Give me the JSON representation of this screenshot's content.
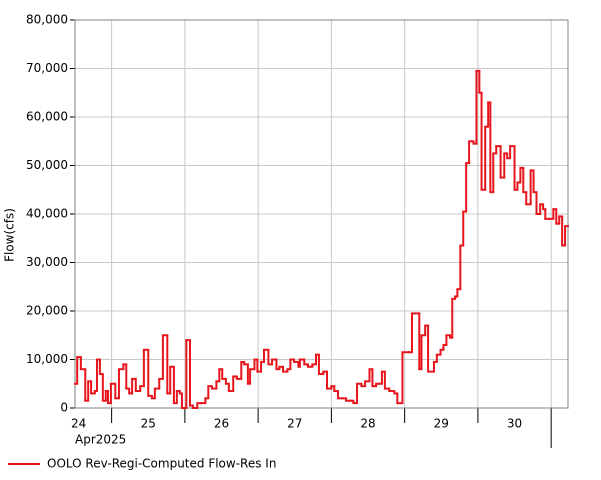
{
  "chart_data": {
    "type": "step",
    "ylabel": "Flow(cfs)",
    "x_sublabel": "Apr2025",
    "xlim": [
      24.5,
      31.23
    ],
    "xticks": [
      25,
      26,
      27,
      28,
      29,
      30,
      31
    ],
    "day_labels": [
      {
        "value": 24.5,
        "label": "24"
      },
      {
        "value": 25.5,
        "label": "25"
      },
      {
        "value": 26.5,
        "label": "26"
      },
      {
        "value": 27.5,
        "label": "27"
      },
      {
        "value": 28.5,
        "label": "28"
      },
      {
        "value": 29.5,
        "label": "29"
      },
      {
        "value": 30.5,
        "label": "30"
      }
    ],
    "ylim": [
      0,
      80000
    ],
    "yticks": [
      0,
      {
        "value": 10000,
        "label": "10,000"
      },
      {
        "value": 20000,
        "label": "20,000"
      },
      {
        "value": 30000,
        "label": "30,000"
      },
      {
        "value": 40000,
        "label": "40,000"
      },
      {
        "value": 50000,
        "label": "50,000"
      },
      {
        "value": 60000,
        "label": "60,000"
      },
      {
        "value": 70000,
        "label": "70,000"
      },
      {
        "value": 80000,
        "label": "80,000"
      }
    ],
    "grid": true,
    "legend": "bottom-left",
    "x": [
      24.5,
      24.53,
      24.58,
      24.64,
      24.68,
      24.72,
      24.77,
      24.8,
      24.84,
      24.88,
      24.92,
      24.95,
      24.99,
      25.05,
      25.1,
      25.16,
      25.2,
      25.24,
      25.28,
      25.33,
      25.39,
      25.44,
      25.5,
      25.55,
      25.59,
      25.65,
      25.7,
      25.76,
      25.8,
      25.85,
      25.89,
      25.93,
      25.96,
      26.02,
      26.07,
      26.11,
      26.17,
      26.22,
      26.28,
      26.32,
      26.37,
      26.43,
      26.47,
      26.51,
      26.56,
      26.6,
      26.66,
      26.71,
      26.77,
      26.81,
      26.86,
      26.89,
      26.95,
      26.99,
      27.04,
      27.08,
      27.14,
      27.19,
      27.25,
      27.29,
      27.34,
      27.4,
      27.44,
      27.49,
      27.55,
      27.57,
      27.63,
      27.68,
      27.74,
      27.79,
      27.83,
      27.89,
      27.94,
      28.0,
      28.04,
      28.09,
      28.15,
      28.2,
      28.26,
      28.3,
      28.35,
      28.41,
      28.46,
      28.52,
      28.56,
      28.61,
      28.65,
      28.69,
      28.73,
      28.79,
      28.86,
      28.9,
      28.97,
      29.06,
      29.1,
      29.19,
      29.2,
      29.23,
      29.28,
      29.32,
      29.4,
      29.44,
      29.49,
      29.53,
      29.57,
      29.62,
      29.65,
      29.69,
      29.72,
      29.76,
      29.8,
      29.84,
      29.88,
      29.94,
      29.98,
      30.02,
      30.05,
      30.1,
      30.14,
      30.17,
      30.21,
      30.25,
      30.31,
      30.36,
      30.4,
      30.44,
      30.5,
      30.54,
      30.58,
      30.62,
      30.66,
      30.72,
      30.76,
      30.8,
      30.85,
      30.89,
      30.92,
      30.97,
      31.03,
      31.07,
      31.11,
      31.15,
      31.19
    ],
    "series": [
      {
        "name": "OOLO Rev-Regi-Computed Flow-Res In",
        "color": "#e8141c",
        "values": [
          5000,
          10500,
          8000,
          1500,
          5500,
          3000,
          3500,
          10000,
          7000,
          1500,
          3500,
          1000,
          5000,
          2000,
          8000,
          9000,
          4000,
          3000,
          6000,
          3500,
          4500,
          12000,
          2500,
          2000,
          4000,
          6000,
          15000,
          3000,
          8500,
          1000,
          3500,
          3000,
          0,
          14000,
          500,
          0,
          1000,
          1000,
          2000,
          4500,
          4000,
          5500,
          8000,
          6000,
          5000,
          3500,
          6500,
          6000,
          9500,
          9000,
          5000,
          8000,
          10000,
          7500,
          9500,
          12000,
          9000,
          10000,
          8000,
          8500,
          7500,
          8000,
          10000,
          9500,
          8500,
          10000,
          9000,
          8500,
          9000,
          11000,
          7000,
          7500,
          4000,
          4500,
          3500,
          2000,
          2000,
          1500,
          1500,
          1000,
          5000,
          4500,
          5500,
          8000,
          4500,
          5000,
          5000,
          7500,
          4000,
          3500,
          3000,
          1000,
          11500,
          11500,
          19500,
          19500,
          8000,
          15000,
          17000,
          7500,
          9500,
          11000,
          12000,
          13000,
          15000,
          14500,
          22500,
          23000,
          24500,
          33500,
          40500,
          50500,
          55000,
          54500,
          69500,
          65000,
          45000,
          58000,
          63000,
          44500,
          52500,
          54000,
          47500,
          52500,
          51500,
          54000,
          45000,
          46500,
          49500,
          44500,
          42000,
          49000,
          44500,
          40000,
          42000,
          41000,
          39000,
          39000,
          41000,
          38000,
          39500,
          33500,
          37500
        ]
      }
    ]
  }
}
